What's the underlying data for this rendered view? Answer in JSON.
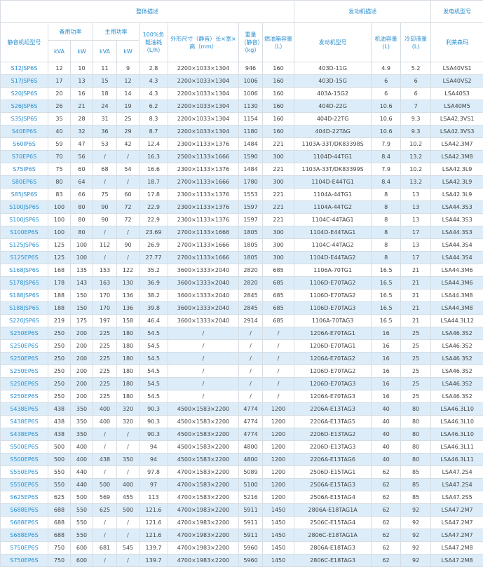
{
  "header": {
    "groups": [
      "整体描述",
      "发动机描述",
      "发电机型号"
    ],
    "model": "静音机组型号",
    "standby": "备用功率",
    "prime": "主用功率",
    "units": [
      "kVA",
      "kW",
      "kVA",
      "kW"
    ],
    "fuel_consumption": "100%负载油耗（L/h）",
    "dimensions": "外形尺寸（静音）长×宽×高（mm）",
    "weight": "重量（静音）（kg）",
    "fuel_tank": "燃油箱容量（L）",
    "engine_model": "发动机型号",
    "oil": "机油容量(L)",
    "coolant": "冷却液量(L)",
    "generator": "利莱森玛"
  },
  "table": {
    "rows": [
      [
        "S12JSP6S",
        "12",
        "10",
        "11",
        "9",
        "2.8",
        "2200×1033×1304",
        "946",
        "160",
        "403D-11G",
        "4.9",
        "5.2",
        "LSA40VS1"
      ],
      [
        "S17JSP6S",
        "17",
        "13",
        "15",
        "12",
        "4.3",
        "2200×1033×1304",
        "1006",
        "160",
        "403D-15G",
        "6",
        "6",
        "LSA40VS2"
      ],
      [
        "S20JSP6S",
        "20",
        "16",
        "18",
        "14",
        "4.3",
        "2200×1033×1304",
        "1006",
        "160",
        "403A-15G2",
        "6",
        "6",
        "LSA40S3"
      ],
      [
        "S26JSP6S",
        "26",
        "21",
        "24",
        "19",
        "6.2",
        "2200×1033×1304",
        "1130",
        "160",
        "404D-22G",
        "10.6",
        "7",
        "LSA40M5"
      ],
      [
        "S35JSP6S",
        "35",
        "28",
        "31",
        "25",
        "8.3",
        "2200×1033×1304",
        "1154",
        "160",
        "404D-22TG",
        "10.6",
        "9.3",
        "LSA42.3VS1"
      ],
      [
        "S40EP6S",
        "40",
        "32",
        "36",
        "29",
        "8.7",
        "2200×1033×1304",
        "1180",
        "160",
        "404D-22TAG",
        "10.6",
        "9.3",
        "LSA42.3VS3"
      ],
      [
        "S60IP6S",
        "59",
        "47",
        "53",
        "42",
        "12.4",
        "2300×1133×1376",
        "1484",
        "221",
        "1103A-33T/DK83398S",
        "7.9",
        "10.2",
        "LSA42.3M7"
      ],
      [
        "S70EP6S",
        "70",
        "56",
        "/",
        "/",
        "16.3",
        "2500×1133×1666",
        "1590",
        "300",
        "1104D-44TG1",
        "8.4",
        "13.2",
        "LSA42.3M8"
      ],
      [
        "S75IP6S",
        "75",
        "60",
        "68",
        "54",
        "16.6",
        "2300×1133×1376",
        "1484",
        "221",
        "1103A-33T/DK83399S",
        "7.9",
        "10.2",
        "LSA42.3L9"
      ],
      [
        "S80EP6S",
        "80",
        "64",
        "/",
        "/",
        "18.7",
        "2700×1133×1666",
        "1780",
        "300",
        "1104D-E44TG1",
        "8.4",
        "13.2",
        "LSA42.3L9"
      ],
      [
        "S85JSP6S",
        "83",
        "66",
        "75",
        "60",
        "17.8",
        "2300×1133×1376",
        "1553",
        "221",
        "1104A-44TG1",
        "8",
        "13",
        "LSA42.3L9"
      ],
      [
        "S100JSP6S",
        "100",
        "80",
        "90",
        "72",
        "22.9",
        "2300×1133×1376",
        "1597",
        "221",
        "1104A-44TG2",
        "8",
        "13",
        "LSA44.3S3"
      ],
      [
        "S100JSP6S",
        "100",
        "80",
        "90",
        "72",
        "22.9",
        "2300×1133×1376",
        "1597",
        "221",
        "1104C-44TAG1",
        "8",
        "13",
        "LSA44.3S3"
      ],
      [
        "S100EP6S",
        "100",
        "80",
        "/",
        "/",
        "23.69",
        "2700×1133×1666",
        "1805",
        "300",
        "1104D-E44TAG1",
        "8",
        "17",
        "LSA44.3S3"
      ],
      [
        "S125JSP6S",
        "125",
        "100",
        "112",
        "90",
        "26.9",
        "2700×1133×1666",
        "1805",
        "300",
        "1104C-44TAG2",
        "8",
        "13",
        "LSA44.3S4"
      ],
      [
        "S125EP6S",
        "125",
        "100",
        "/",
        "/",
        "27.77",
        "2700×1133×1666",
        "1805",
        "300",
        "1104D-E44TAG2",
        "8",
        "17",
        "LSA44.3S4"
      ],
      [
        "S168JSP6S",
        "168",
        "135",
        "153",
        "122",
        "35.2",
        "3600×1333×2040",
        "2820",
        "685",
        "1106A-70TG1",
        "16.5",
        "21",
        "LSA44.3M6"
      ],
      [
        "S178JSP6S",
        "178",
        "143",
        "163",
        "130",
        "36.9",
        "3600×1333×2040",
        "2820",
        "685",
        "1106D-E70TAG2",
        "16.5",
        "21",
        "LSA44.3M6"
      ],
      [
        "S188JSP6S",
        "188",
        "150",
        "170",
        "136",
        "38.2",
        "3600×1333×2040",
        "2845",
        "685",
        "1106D-E70TAG2",
        "16.5",
        "21",
        "LSA44.3M8"
      ],
      [
        "S188JSP6S",
        "188",
        "150",
        "170",
        "136",
        "39.8",
        "3600×1333×2040",
        "2845",
        "685",
        "1106D-E70TAG3",
        "16.5",
        "21",
        "LSA44.3M8"
      ],
      [
        "S220JSP6S",
        "219",
        "175",
        "197",
        "158",
        "46.4",
        "3600×1333×2040",
        "2914",
        "685",
        "1106A-70TAG3",
        "16.5",
        "21",
        "LSA44.3L12"
      ],
      [
        "S250EP6S",
        "250",
        "200",
        "225",
        "180",
        "54.5",
        "/",
        "/",
        "/",
        "1206A-E70TAG1",
        "16",
        "25",
        "LSA46.3S2"
      ],
      [
        "S250EP6S",
        "250",
        "200",
        "225",
        "180",
        "54.5",
        "/",
        "/",
        "/",
        "1206D-E70TAG1",
        "16",
        "25",
        "LSA46.3S2"
      ],
      [
        "S250EP6S",
        "250",
        "200",
        "225",
        "180",
        "54.5",
        "/",
        "/",
        "/",
        "1206A-E70TAG2",
        "16",
        "25",
        "LSA46.3S2"
      ],
      [
        "S250EP6S",
        "250",
        "200",
        "225",
        "180",
        "54.5",
        "/",
        "/",
        "/",
        "1206D-E70TAG2",
        "16",
        "25",
        "LSA46.3S2"
      ],
      [
        "S250EP6S",
        "250",
        "200",
        "225",
        "180",
        "54.5",
        "/",
        "/",
        "/",
        "1206D-E70TAG3",
        "16",
        "25",
        "LSA46.3S2"
      ],
      [
        "S250EP6S",
        "250",
        "200",
        "225",
        "180",
        "54.5",
        "/",
        "/",
        "/",
        "1206A-E70TAG3",
        "16",
        "25",
        "LSA46.3S2"
      ],
      [
        "S438EP6S",
        "438",
        "350",
        "400",
        "320",
        "90.3",
        "4500×1583×2200",
        "4774",
        "1200",
        "2206A-E13TAG3",
        "40",
        "80",
        "LSA46.3L10"
      ],
      [
        "S438EP6S",
        "438",
        "350",
        "400",
        "320",
        "90.3",
        "4500×1583×2200",
        "4774",
        "1200",
        "2206A-E13TAG5",
        "40",
        "80",
        "LSA46.3L10"
      ],
      [
        "S438EP6S",
        "438",
        "350",
        "/",
        "/",
        "90.3",
        "4500×1583×2200",
        "4774",
        "1200",
        "2206D-E13TAG2",
        "40",
        "80",
        "LSA46.3L10"
      ],
      [
        "S500EP6S",
        "500",
        "400",
        "/",
        "/",
        "94",
        "4500×1583×2200",
        "4800",
        "1200",
        "2206D-E13TAG3",
        "40",
        "80",
        "LSA46.3L11"
      ],
      [
        "S500EP6S",
        "500",
        "400",
        "438",
        "350",
        "94",
        "4500×1583×2200",
        "4800",
        "1200",
        "2206A-E13TAG6",
        "40",
        "80",
        "LSA46.3L11"
      ],
      [
        "S550EP6S",
        "550",
        "440",
        "/",
        "/",
        "97.8",
        "4700×1583×2200",
        "5089",
        "1200",
        "2506D-E15TAG1",
        "62",
        "85",
        "LSA47.2S4"
      ],
      [
        "S550EP6S",
        "550",
        "440",
        "500",
        "400",
        "97",
        "4700×1583×2200",
        "5100",
        "1200",
        "2506A-E15TAG3",
        "62",
        "85",
        "LSA47.2S4"
      ],
      [
        "S625EP6S",
        "625",
        "500",
        "569",
        "455",
        "113",
        "4700×1583×2200",
        "5216",
        "1200",
        "2506A-E15TAG4",
        "62",
        "85",
        "LSA47.2S5"
      ],
      [
        "S688EP6S",
        "688",
        "550",
        "625",
        "500",
        "121.6",
        "4700×1983×2200",
        "5911",
        "1450",
        "2806A-E18TAG1A",
        "62",
        "92",
        "LSA47.2M7"
      ],
      [
        "S688EP6S",
        "688",
        "550",
        "/",
        "/",
        "121.6",
        "4700×1983×2200",
        "5911",
        "1450",
        "2506C-E15TAG4",
        "62",
        "92",
        "LSA47.2M7"
      ],
      [
        "S688EP6S",
        "688",
        "550",
        "/",
        "/",
        "121.6",
        "4700×1983×2200",
        "5911",
        "1450",
        "2806C-E18TAG1A",
        "62",
        "92",
        "LSA47.2M7"
      ],
      [
        "S750EP6S",
        "750",
        "600",
        "681",
        "545",
        "139.7",
        "4700×1983×2200",
        "5960",
        "1450",
        "2806A-E18TAG3",
        "62",
        "92",
        "LSA47.2M8"
      ],
      [
        "S750EP6S",
        "750",
        "600",
        "/",
        "/",
        "139.7",
        "4700×1983×2200",
        "5960",
        "1450",
        "2806C-E18TAG3",
        "62",
        "92",
        "LSA47.2M8"
      ]
    ]
  }
}
